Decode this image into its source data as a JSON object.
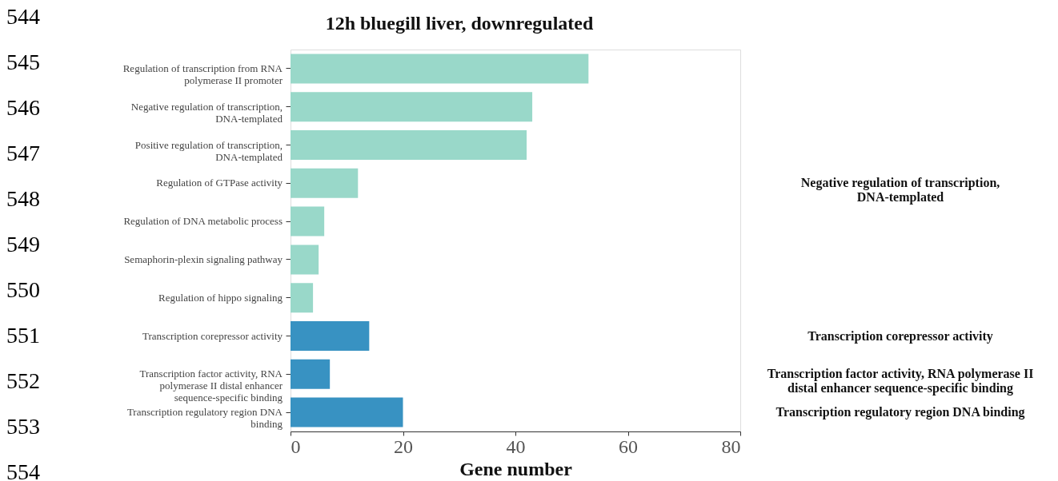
{
  "chart_data": {
    "type": "bar",
    "orientation": "horizontal",
    "title": "12h bluegill liver, downregulated",
    "xlabel": "Gene number",
    "categories": [
      "Regulation of transcription from RNA polymerase II promoter",
      "Negative regulation of transcription, DNA-templated",
      "Positive regulation of transcription, DNA-templated",
      "Regulation of GTPase activity",
      "Regulation of DNA metabolic process",
      "Semaphorin-plexin signaling pathway",
      "Regulation of hippo signaling",
      "Transcription corepressor activity",
      "Transcription factor activity, RNA polymerase II distal enhancer sequence-specific binding",
      "Transcription regulatory region DNA binding"
    ],
    "values": [
      53,
      43,
      42,
      12,
      6,
      5,
      4,
      14,
      7,
      20
    ],
    "colors": [
      "#99d8c9",
      "#99d8c9",
      "#99d8c9",
      "#99d8c9",
      "#99d8c9",
      "#99d8c9",
      "#99d8c9",
      "#3892c2",
      "#3892c2",
      "#3892c2"
    ],
    "xlim": [
      0,
      80
    ],
    "xticks": [
      0,
      20,
      40,
      60,
      80
    ],
    "grid": false,
    "legend": false,
    "annotations": [
      "Negative regulation of transcription, DNA-templated",
      "Transcription corepressor activity",
      "Transcription factor activity, RNA polymerase II distal enhancer sequence-specific binding",
      "Transcription regulatory region DNA binding",
      "544",
      "545",
      "546",
      "547",
      "548",
      "549",
      "550",
      "551",
      "552",
      "553",
      "554"
    ]
  }
}
